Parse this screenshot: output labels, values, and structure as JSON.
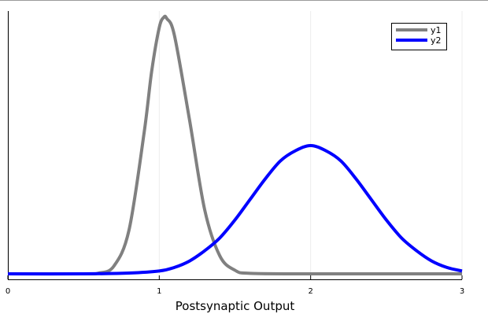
{
  "chart_data": {
    "type": "line",
    "title": "",
    "xlabel": "Postsynaptic Output",
    "ylabel": "",
    "xlim": [
      0,
      3
    ],
    "ylim": [
      0,
      1.06
    ],
    "x_ticks": [
      0,
      1,
      2,
      3
    ],
    "x_tick_labels": [
      "0",
      "1",
      "2",
      "3"
    ],
    "y_tick_labels": [],
    "grid": "vertical",
    "legend_position": "top-right",
    "series": [
      {
        "name": "y1",
        "color": "#808080",
        "x": [
          0,
          0.5,
          0.6,
          0.7,
          0.8,
          0.9,
          0.95,
          1.0,
          1.03,
          1.05,
          1.1,
          1.2,
          1.3,
          1.4,
          1.5,
          1.6,
          2.0,
          2.5,
          3.0
        ],
        "y": [
          0.0,
          0.0,
          0.003,
          0.03,
          0.17,
          0.55,
          0.79,
          0.96,
          1.0,
          0.995,
          0.93,
          0.6,
          0.25,
          0.07,
          0.014,
          0.002,
          0.0,
          0.0,
          0.0
        ]
      },
      {
        "name": "y2",
        "color": "#0000ff",
        "x": [
          0,
          0.5,
          0.8,
          1.0,
          1.1,
          1.2,
          1.3,
          1.4,
          1.5,
          1.6,
          1.7,
          1.8,
          1.9,
          2.0,
          2.1,
          2.2,
          2.3,
          2.4,
          2.5,
          2.6,
          2.7,
          2.8,
          2.9,
          3.0
        ],
        "y": [
          0.0,
          0.0,
          0.003,
          0.011,
          0.025,
          0.05,
          0.09,
          0.14,
          0.21,
          0.29,
          0.37,
          0.44,
          0.48,
          0.5,
          0.48,
          0.44,
          0.37,
          0.29,
          0.21,
          0.14,
          0.09,
          0.05,
          0.025,
          0.011
        ]
      }
    ]
  }
}
